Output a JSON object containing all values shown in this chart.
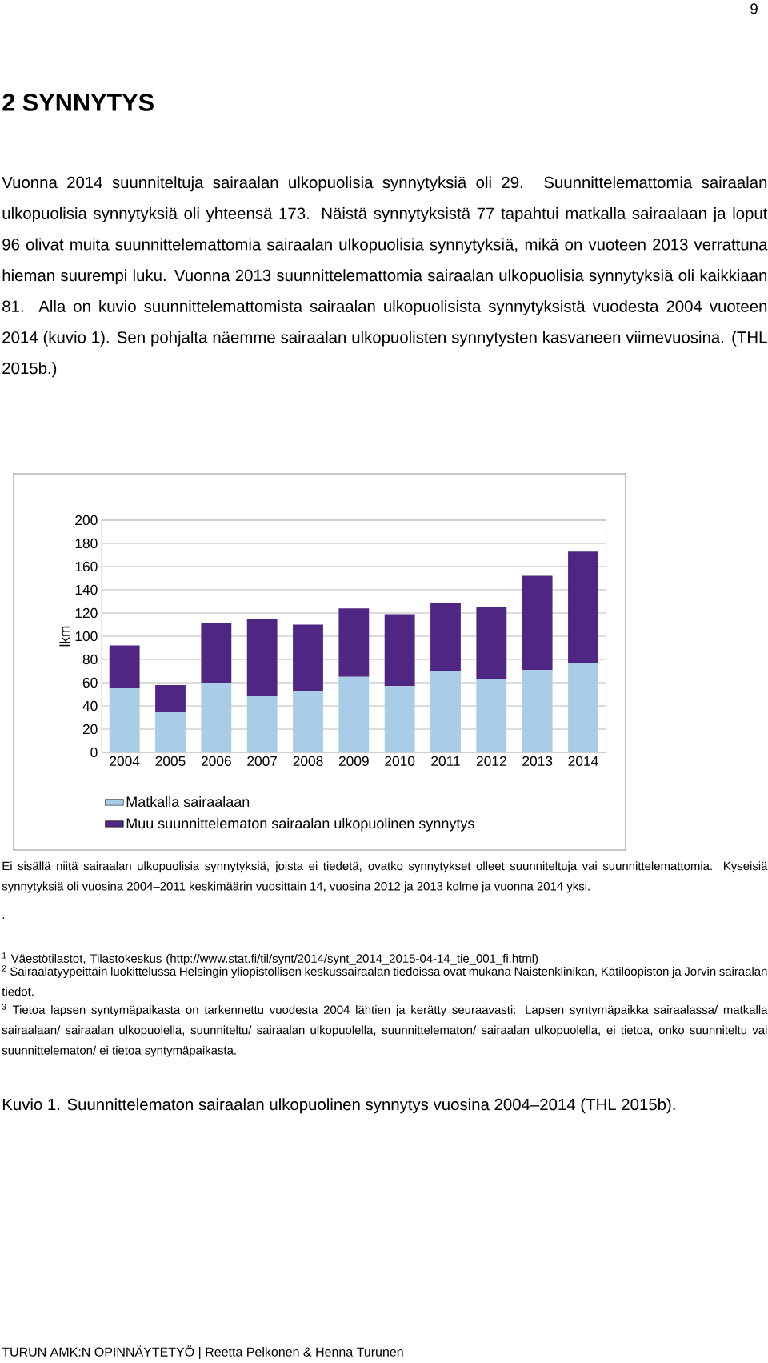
{
  "chart_data": {
    "type": "bar",
    "stacked": true,
    "title": "2 SYNNYTYS",
    "subtitle": "Vuonna 2014 suunniteltuja sairaalan ulkopuolisia synnytyksiä oli 29. Suunnittelemattomia sairaalan ulkopuolisia synnytyksiä oli yhteensä 173. Näistä synnytyksistä 77 tapahtui matkalla sairaalaan ja loput 96 olivat muita suunnittelemattomia sairaalan ulkopuolisia synnytyksiä, mikä on vuoteen 2013 verrattuna hieman suurempi luku. Vuonna 2013 suunnittelemattomia sairaalan ulkopuolisia synnytyksiä oli kaikkiaan 81. Alla on kuvio suunnittelemattomista sairaalan ulkopuolisista synnytyksistä vuodesta 2004 vuoteen 2014 (kuvio 1). Sen pohjalta näemme sairaalan ulkopuolisten synnytysten kasvaneen viimevuosina. (THL 2015b.)",
    "ylabel": "lkm",
    "categories": [
      "2004",
      "2005",
      "2006",
      "2007",
      "2008",
      "2009",
      "2010",
      "2011",
      "2012",
      "2013",
      "2014"
    ],
    "series": [
      {
        "name": "Matkalla sairaalaan",
        "color": "#a9cde6",
        "values": [
          55,
          35,
          60,
          49,
          53,
          65,
          57,
          70,
          63,
          71,
          77
        ]
      },
      {
        "name": "Muu suunnittelematon sairaalan ulkopuolinen synnytys",
        "color": "#4f2683",
        "values": [
          37,
          23,
          51,
          66,
          57,
          59,
          62,
          59,
          62,
          81,
          96
        ]
      }
    ],
    "ylim": [
      0,
      200
    ],
    "yticks": [
      0,
      20,
      40,
      60,
      80,
      100,
      120,
      140,
      160,
      180,
      200
    ],
    "grid": "y",
    "legend": "bottom",
    "annotations": [
      "9",
      "Ei sisällä niitä sairaalan ulkopuolisia synnytyksiä, joista ei tiedetä, ovatko synnytykset olleet suunniteltuja vai suunnittelemattomia. Kyseisiä synnytyksiä oli vuosina 2004–2011 keskimäärin vuosittain 14, vuosina 2012 ja 2013 kolme ja vuonna 2014 yksi.",
      ".",
      "$^{1}$ Väestötilastot, Tilastokeskus (http://www.stat.fi/til/synt/2014/synt_2014_2015-04-14_tie_001_fi.html)",
      "$^{2}$ Sairaalatyypeittäin luokittelussa Helsingin yliopistollisen keskussairaalan tiedoissa ovat mukana Naistenklinikan, Kätilöopiston ja Jorvin sairaalan tiedot.",
      "$^{3}$ Tietoa lapsen syntymäpaikasta on tarkennettu vuodesta 2004 lähtien ja kerätty seuraavasti: Lapsen syntymäpaikka sairaalassa/ matkalla sairaalaan/ sairaalan ulkopuolella, suunniteltu/ sairaalan ulkopuolella, suunnittelematon/ sairaalan ulkopuolella, ei tietoa, onko suunniteltu vai suunnittelematon/ ei tietoa syntymäpaikasta.",
      "Kuvio 1. Suunnittelematon sairaalan ulkopuolinen synnytys vuosina 2004–2014 (THL 2015b).",
      "TURUN AMK:N OPINNÄYTETYÖ | Reetta Pelkonen & Henna Turunen"
    ]
  }
}
